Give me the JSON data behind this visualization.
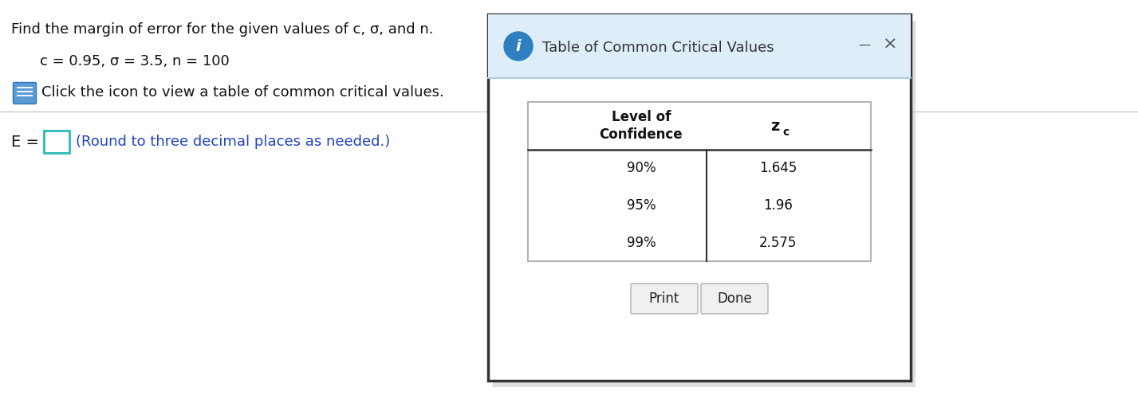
{
  "bg_color": "#ffffff",
  "title_text": "Find the margin of error for the given values of c, σ, and n.",
  "params_text": "c = 0.95, σ = 3.5, n = 100",
  "icon_text": "Click the icon to view a table of common critical values.",
  "answer_label": "E = ",
  "answer_hint": "(Round to three decimal places as needed.)",
  "dialog_title": "Table of Common Critical Values",
  "dialog_bg": "#ddeef8",
  "dialog_content_bg": "#ffffff",
  "table_header_col1": "Level of\nConfidence",
  "table_header_col2": "z",
  "table_header_col2_sub": "c",
  "table_data": [
    [
      "90%",
      "1.645"
    ],
    [
      "95%",
      "1.96"
    ],
    [
      "99%",
      "2.575"
    ]
  ],
  "btn_print": "Print",
  "btn_done": "Done",
  "dialog_border_color": "#333333",
  "info_icon_color": "#2e7fc0",
  "answer_box_color": "#2eb8b8",
  "hint_color": "#2244bb",
  "separator_color": "#cccccc",
  "left_text_color": "#111111",
  "minimize_color": "#555555",
  "close_color": "#555555",
  "table_border_color": "#aaaaaa",
  "table_line_color": "#333333",
  "btn_bg": "#f0f0f0",
  "btn_border": "#bbbbbb"
}
